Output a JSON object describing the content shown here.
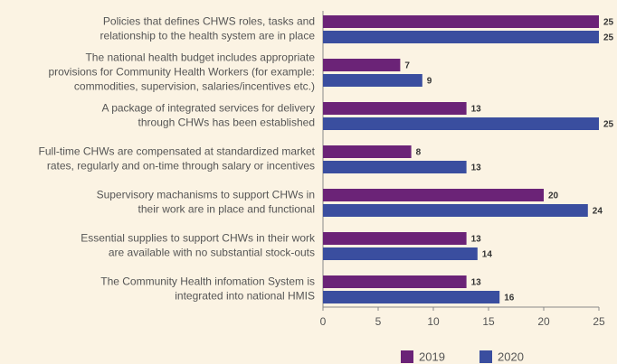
{
  "chart_data": {
    "type": "bar",
    "orientation": "horizontal",
    "categories": [
      [
        "Policies that defines CHWS roles, tasks and",
        "relationship to the health system are in place"
      ],
      [
        "The national health budget includes appropriate",
        "provisions for Community Health Workers (for example:",
        "commodities, supervision, salaries/incentives etc.)"
      ],
      [
        "A package of integrated services for delivery",
        "through CHWs has been established"
      ],
      [
        "Full-time CHWs are compensated at standardized market",
        "rates, regularly and on-time through salary or incentives"
      ],
      [
        "Supervisory machanisms to support CHWs in",
        "their work are in place and functional"
      ],
      [
        "Essential supplies to support CHWs in their work",
        "are available with no substantial stock-outs"
      ],
      [
        "The Community Health infomation System is",
        "integrated into national HMIS"
      ]
    ],
    "series": [
      {
        "name": "2019",
        "color": "#6b2377",
        "values": [
          25,
          7,
          13,
          8,
          20,
          13,
          13
        ]
      },
      {
        "name": "2020",
        "color": "#3a4e9f",
        "values": [
          25,
          9,
          25,
          13,
          24,
          14,
          16
        ]
      }
    ],
    "xlim": [
      0,
      25
    ],
    "xticks": [
      0,
      5,
      10,
      15,
      20,
      25
    ],
    "legend": "bottom"
  }
}
